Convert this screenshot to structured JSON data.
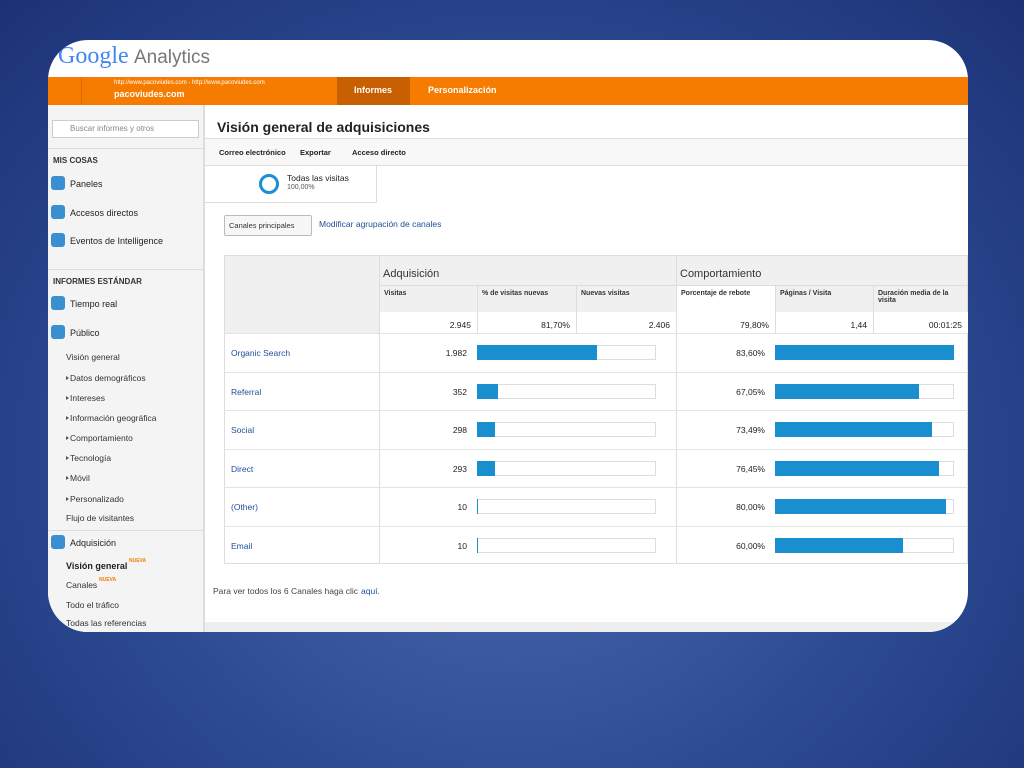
{
  "header": {
    "logo_google": "Google",
    "logo_analytics": "Analytics",
    "site_url": "http://www.pacoviudes.com - http://www.pacoviudes.com",
    "site_name": "pacoviudes.com",
    "tabs": [
      "Informes",
      "Personalización"
    ]
  },
  "sidebar": {
    "search": "Buscar informes y otros",
    "items": [
      {
        "text": "MIS COSAS",
        "kind": "heading"
      },
      {
        "text": "Paneles",
        "kind": "top"
      },
      {
        "text": "Accesos directos",
        "kind": "top"
      },
      {
        "text": "Eventos de Intelligence",
        "kind": "top"
      },
      {
        "text": "INFORMES ESTÁNDAR",
        "kind": "heading"
      },
      {
        "text": "Tiempo real",
        "kind": "top"
      },
      {
        "text": "Público",
        "kind": "top"
      },
      {
        "text": "Visión general",
        "kind": "sub"
      },
      {
        "text": "Datos demográficos",
        "kind": "child"
      },
      {
        "text": "Intereses",
        "kind": "child"
      },
      {
        "text": "Información geográfica",
        "kind": "child"
      },
      {
        "text": "Comportamiento",
        "kind": "child"
      },
      {
        "text": "Tecnología",
        "kind": "child"
      },
      {
        "text": "Móvil",
        "kind": "child"
      },
      {
        "text": "Personalizado",
        "kind": "child"
      },
      {
        "text": "Flujo de visitantes",
        "kind": "sub"
      },
      {
        "text": "Adquisición",
        "kind": "top"
      },
      {
        "text": "Visión general",
        "kind": "current",
        "badge": "NUEVA"
      },
      {
        "text": "Canales",
        "kind": "sub",
        "badge": "NUEVA"
      },
      {
        "text": "Todo el tráfico",
        "kind": "sub"
      },
      {
        "text": "Todas las referencias",
        "kind": "sub"
      }
    ]
  },
  "main": {
    "title": "Visión general de adquisiciones",
    "toolbar": [
      "Correo electrónico",
      "Exportar",
      "Acceso directo"
    ],
    "segment": {
      "name": "Todas las visitas",
      "pct": "100,00%"
    },
    "dropdown": "Canales principales",
    "link": "Modificar agrupación de canales",
    "table": {
      "groups": [
        "Adquisición",
        "Comportamiento"
      ],
      "columns": [
        "Visitas",
        "% de visitas nuevas",
        "Nuevas visitas",
        "Porcentaje de rebote",
        "Páginas / Visita",
        "Duración media de la visita"
      ],
      "totals": [
        {
          "value": 2945,
          "label": "2.945"
        },
        "81,70%",
        "2.406",
        "79,80%",
        "1,44",
        "00:01:25"
      ],
      "rows": [
        {
          "name": "Organic Search",
          "visits": {
            "value": 1982,
            "label": "1.982"
          },
          "bounce": {
            "value": 83.6,
            "label": "83,60%"
          }
        },
        {
          "name": "Referral",
          "visits": {
            "value": 352,
            "label": "352"
          },
          "bounce": {
            "value": 67.05,
            "label": "67,05%"
          }
        },
        {
          "name": "Social",
          "visits": {
            "value": 298,
            "label": "298"
          },
          "bounce": {
            "value": 73.49,
            "label": "73,49%"
          }
        },
        {
          "name": "Direct",
          "visits": {
            "value": 293,
            "label": "293"
          },
          "bounce": {
            "value": 76.45,
            "label": "76,45%"
          }
        },
        {
          "name": "(Other)",
          "visits": {
            "value": 10,
            "label": "10"
          },
          "bounce": {
            "value": 80,
            "label": "80,00%"
          }
        },
        {
          "name": "Email",
          "visits": {
            "value": 10,
            "label": "10"
          },
          "bounce": {
            "value": 60,
            "label": "60,00%"
          }
        }
      ]
    },
    "footer_note": "Para ver todos los 6 Canales haga clic",
    "footer_link": "aquí."
  }
}
